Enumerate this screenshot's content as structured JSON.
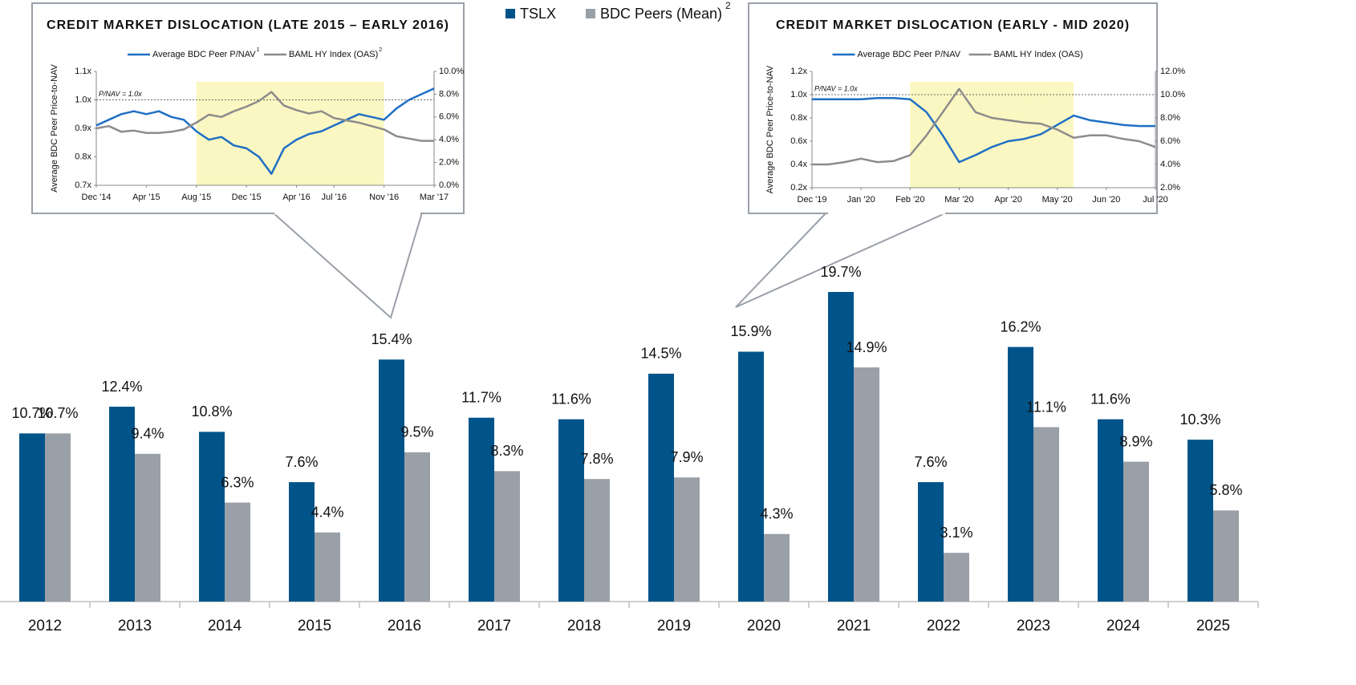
{
  "chart_data": [
    {
      "type": "bar",
      "categories": [
        "2012",
        "2013",
        "2014",
        "2015",
        "2016",
        "2017",
        "2018",
        "2019",
        "2020",
        "2021",
        "2022",
        "2023",
        "2024",
        "2025"
      ],
      "series": [
        {
          "name": "TSLX",
          "color": "#00548a",
          "values": [
            10.7,
            12.4,
            10.8,
            7.6,
            15.4,
            11.7,
            11.6,
            14.5,
            15.9,
            19.7,
            7.6,
            16.2,
            11.6,
            10.3
          ],
          "value_labels": [
            "10.7%",
            "12.4%",
            "10.8%",
            "7.6%",
            "15.4%",
            "11.7%",
            "11.6%",
            "14.5%",
            "15.9%",
            "19.7%",
            "7.6%",
            "16.2%",
            "11.6%",
            "10.3%"
          ]
        },
        {
          "name": "BDC Peers (Mean)",
          "note": "2",
          "color": "#9aa0a8",
          "values": [
            10.7,
            9.4,
            6.3,
            4.4,
            9.5,
            8.3,
            7.8,
            7.9,
            4.3,
            14.9,
            3.1,
            11.1,
            8.9,
            5.8
          ],
          "value_labels": [
            "10.7%",
            "9.4%",
            "6.3%",
            "4.4%",
            "9.5%",
            "8.3%",
            "7.8%",
            "7.9%",
            "4.3%",
            "14.9%",
            "3.1%",
            "11.1%",
            "8.9%",
            "5.8%"
          ]
        }
      ]
    },
    {
      "type": "line",
      "title": "CREDIT MARKET DISLOCATION (LATE 2015 – EARLY 2016)",
      "y_label": "Average BDC Peer Price-to-NAV",
      "x": [
        "Dec '14",
        null,
        null,
        null,
        "Apr '15",
        null,
        null,
        null,
        "Aug '15",
        null,
        null,
        null,
        "Dec '15",
        null,
        null,
        null,
        "Apr '16",
        null,
        null,
        "Jul '16",
        null,
        null,
        null,
        "Nov '16",
        null,
        null,
        null,
        "Mar '17"
      ],
      "highlight": [
        8,
        23
      ],
      "ref_line": {
        "value": 1.0,
        "label": "P/NAV = 1.0x"
      },
      "ylim": [
        0.7,
        1.1
      ],
      "yticks": [
        {
          "value": 0.7,
          "label": "0.7x"
        },
        {
          "value": 0.8,
          "label": "0.8x"
        },
        {
          "value": 0.9,
          "label": "0.9x"
        },
        {
          "value": 1.0,
          "label": "1.0x"
        },
        {
          "value": 1.1,
          "label": "1.1x"
        }
      ],
      "y2lim": [
        0,
        10
      ],
      "y2ticks": [
        {
          "value": 0,
          "label": "0.0%"
        },
        {
          "value": 2,
          "label": "2.0%"
        },
        {
          "value": 4,
          "label": "4.0%"
        },
        {
          "value": 6,
          "label": "6.0%"
        },
        {
          "value": 8,
          "label": "8.0%"
        },
        {
          "value": 10,
          "label": "10.0%"
        }
      ],
      "series": [
        {
          "name": "Average BDC Peer P/NAV",
          "note": "1",
          "color": "#1f6fc5",
          "values": [
            0.91,
            0.93,
            0.95,
            0.96,
            0.95,
            0.96,
            0.94,
            0.93,
            0.89,
            0.86,
            0.87,
            0.84,
            0.83,
            0.8,
            0.74,
            0.83,
            0.86,
            0.88,
            0.89,
            0.91,
            0.93,
            0.95,
            0.94,
            0.93,
            0.97,
            1.0,
            1.02,
            1.04
          ]
        },
        {
          "name": "BAML HY Index (OAS)",
          "note": "2",
          "color": "#8c8c8c",
          "axis": "y2",
          "values": [
            5.0,
            5.2,
            4.7,
            4.8,
            4.6,
            4.6,
            4.7,
            4.9,
            5.5,
            6.2,
            6.0,
            6.5,
            6.9,
            7.4,
            8.2,
            7.0,
            6.6,
            6.3,
            6.5,
            5.9,
            5.7,
            5.5,
            5.2,
            4.9,
            4.3,
            4.1,
            3.9,
            3.9
          ]
        }
      ]
    },
    {
      "type": "line",
      "title": "CREDIT MARKET DISLOCATION (EARLY - MID 2020)",
      "y_label": "Average BDC Peer Price-to-NAV",
      "x": [
        "Dec '19",
        null,
        null,
        "Jan '20",
        null,
        null,
        "Feb '20",
        null,
        null,
        "Mar '20",
        null,
        null,
        "Apr '20",
        null,
        null,
        "May '20",
        null,
        null,
        "Jun '20",
        null,
        null,
        "Jul '20"
      ],
      "highlight": [
        6,
        16
      ],
      "ref_line": {
        "value": 1.0,
        "label": "P/NAV = 1.0x"
      },
      "ylim": [
        0.2,
        1.2
      ],
      "yticks": [
        {
          "value": 0.2,
          "label": "0.2x"
        },
        {
          "value": 0.4,
          "label": "0.4x"
        },
        {
          "value": 0.6,
          "label": "0.6x"
        },
        {
          "value": 0.8,
          "label": "0.8x"
        },
        {
          "value": 1.0,
          "label": "1.0x"
        },
        {
          "value": 1.2,
          "label": "1.2x"
        }
      ],
      "y2lim": [
        2,
        12
      ],
      "y2ticks": [
        {
          "value": 2,
          "label": "2.0%"
        },
        {
          "value": 4,
          "label": "4.0%"
        },
        {
          "value": 6,
          "label": "6.0%"
        },
        {
          "value": 8,
          "label": "8.0%"
        },
        {
          "value": 10,
          "label": "10.0%"
        },
        {
          "value": 12,
          "label": "12.0%"
        }
      ],
      "series": [
        {
          "name": "Average BDC Peer P/NAV",
          "color": "#1f6fc5",
          "values": [
            0.96,
            0.96,
            0.96,
            0.96,
            0.97,
            0.97,
            0.96,
            0.85,
            0.65,
            0.42,
            0.48,
            0.55,
            0.6,
            0.62,
            0.66,
            0.74,
            0.82,
            0.78,
            0.76,
            0.74,
            0.73,
            0.73
          ]
        },
        {
          "name": "BAML HY Index (OAS)",
          "color": "#8c8c8c",
          "axis": "y2",
          "values": [
            4.0,
            4.0,
            4.2,
            4.5,
            4.2,
            4.3,
            4.8,
            6.5,
            8.5,
            10.5,
            8.5,
            8.0,
            7.8,
            7.6,
            7.5,
            7.0,
            6.3,
            6.5,
            6.5,
            6.2,
            6.0,
            5.5
          ]
        }
      ]
    }
  ]
}
